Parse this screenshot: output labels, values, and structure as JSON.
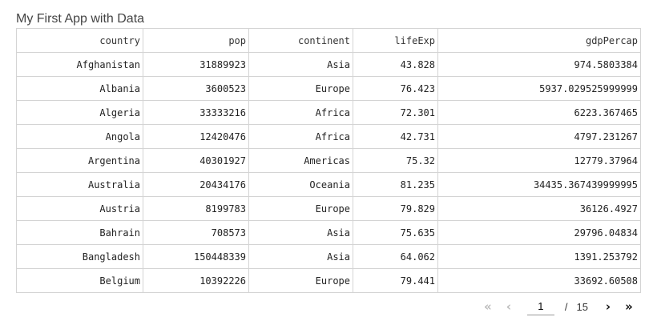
{
  "app": {
    "title": "My First App with Data"
  },
  "table": {
    "columns": [
      "country",
      "pop",
      "continent",
      "lifeExp",
      "gdpPercap"
    ],
    "rows": [
      [
        "Afghanistan",
        "31889923",
        "Asia",
        "43.828",
        "974.5803384"
      ],
      [
        "Albania",
        "3600523",
        "Europe",
        "76.423",
        "5937.029525999999"
      ],
      [
        "Algeria",
        "33333216",
        "Africa",
        "72.301",
        "6223.367465"
      ],
      [
        "Angola",
        "12420476",
        "Africa",
        "42.731",
        "4797.231267"
      ],
      [
        "Argentina",
        "40301927",
        "Americas",
        "75.32",
        "12779.37964"
      ],
      [
        "Australia",
        "20434176",
        "Oceania",
        "81.235",
        "34435.367439999995"
      ],
      [
        "Austria",
        "8199783",
        "Europe",
        "79.829",
        "36126.4927"
      ],
      [
        "Bahrain",
        "708573",
        "Asia",
        "75.635",
        "29796.04834"
      ],
      [
        "Bangladesh",
        "150448339",
        "Asia",
        "64.062",
        "1391.253792"
      ],
      [
        "Belgium",
        "10392226",
        "Europe",
        "79.441",
        "33692.60508"
      ]
    ]
  },
  "pager": {
    "current_page": "1",
    "separator": "/",
    "total_pages": "15",
    "first_icon": "«",
    "prev_icon": "‹",
    "next_icon": "›",
    "last_icon": "»"
  }
}
